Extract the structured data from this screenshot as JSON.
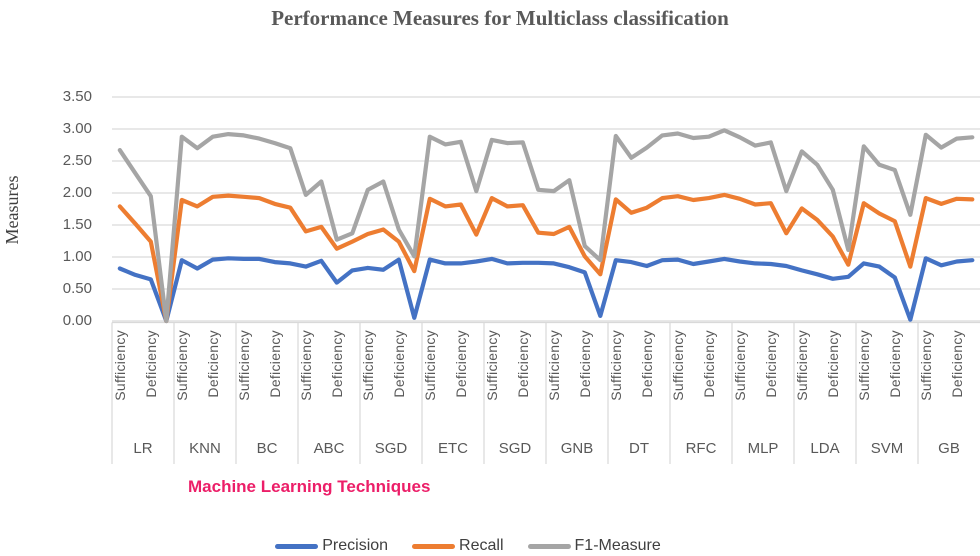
{
  "chart_data": {
    "type": "line",
    "title": "Performance Measures for Multiclass classification",
    "xlabel": "Machine Learning Techniques",
    "ylabel": "Measures",
    "ylim": [
      0,
      3.5
    ],
    "grid": true,
    "legend_position": "bottom",
    "y_tick_labels": [
      "0.00",
      "0.50",
      "1.00",
      "1.50",
      "2.00",
      "2.50",
      "3.00",
      "3.50"
    ],
    "groups": [
      "LR",
      "KNN",
      "BC",
      "ABC",
      "SGD",
      "ETC",
      "SGD",
      "GNB",
      "DT",
      "RFC",
      "MLP",
      "LDA",
      "SVM",
      "GB"
    ],
    "points_per_group": 4,
    "x_tick_labels": [
      "Sufficiency",
      "Deficiency",
      "Sufficiency",
      "Deficiency",
      "Sufficiency",
      "Deficiency",
      "Sufficiency",
      "Deficiency",
      "Sufficiency",
      "Deficiency",
      "Sufficiency",
      "Deficiency",
      "Sufficiency",
      "Deficiency",
      "Sufficiency",
      "Deficiency",
      "Sufficiency",
      "Deficiency",
      "Sufficiency",
      "Deficiency",
      "Sufficiency",
      "Deficiency",
      "Sufficiency",
      "Deficiency",
      "Sufficiency",
      "Deficiency",
      "Sufficiency",
      "Deficiency"
    ],
    "series": [
      {
        "name": "Precision",
        "color": "#4472C4",
        "values": [
          0.82,
          0.72,
          0.65,
          0.0,
          0.95,
          0.82,
          0.96,
          0.98,
          0.97,
          0.97,
          0.92,
          0.9,
          0.85,
          0.94,
          0.6,
          0.79,
          0.83,
          0.8,
          0.96,
          0.05,
          0.96,
          0.9,
          0.9,
          0.93,
          0.97,
          0.9,
          0.91,
          0.91,
          0.9,
          0.84,
          0.76,
          0.08,
          0.95,
          0.92,
          0.86,
          0.95,
          0.96,
          0.89,
          0.93,
          0.97,
          0.93,
          0.9,
          0.89,
          0.86,
          0.79,
          0.73,
          0.66,
          0.69,
          0.9,
          0.85,
          0.68,
          0.02,
          0.98,
          0.87,
          0.93,
          0.95
        ]
      },
      {
        "name": "Recall",
        "color": "#ED7D31",
        "values": [
          1.79,
          1.52,
          1.24,
          0.0,
          1.89,
          1.79,
          1.94,
          1.96,
          1.94,
          1.92,
          1.83,
          1.77,
          1.4,
          1.47,
          1.13,
          1.24,
          1.36,
          1.43,
          1.24,
          0.78,
          1.91,
          1.79,
          1.82,
          1.35,
          1.92,
          1.79,
          1.81,
          1.38,
          1.36,
          1.47,
          1.01,
          0.73,
          1.9,
          1.69,
          1.77,
          1.92,
          1.95,
          1.89,
          1.92,
          1.97,
          1.91,
          1.82,
          1.84,
          1.37,
          1.76,
          1.58,
          1.32,
          0.88,
          1.84,
          1.68,
          1.56,
          0.85,
          1.92,
          1.83,
          1.91,
          1.9
        ]
      },
      {
        "name": "F1-Measure",
        "color": "#A5A5A5",
        "values": [
          2.67,
          2.31,
          1.95,
          0.0,
          2.88,
          2.7,
          2.88,
          2.92,
          2.9,
          2.85,
          2.78,
          2.7,
          1.97,
          2.18,
          1.27,
          1.37,
          2.05,
          2.18,
          1.43,
          1.01,
          2.88,
          2.76,
          2.8,
          2.03,
          2.83,
          2.78,
          2.79,
          2.05,
          2.03,
          2.2,
          1.17,
          0.95,
          2.89,
          2.55,
          2.71,
          2.9,
          2.93,
          2.86,
          2.88,
          2.98,
          2.87,
          2.74,
          2.79,
          2.03,
          2.65,
          2.44,
          2.05,
          1.11,
          2.73,
          2.44,
          2.36,
          1.66,
          2.91,
          2.71,
          2.85,
          2.87
        ]
      }
    ],
    "colors": {
      "grid": "#D9D9D9",
      "axis_text": "#595959",
      "title_text": "#595959",
      "x_title_text": "#EC1E68",
      "legend_text": "#404040",
      "background": "#FFFFFF"
    }
  }
}
